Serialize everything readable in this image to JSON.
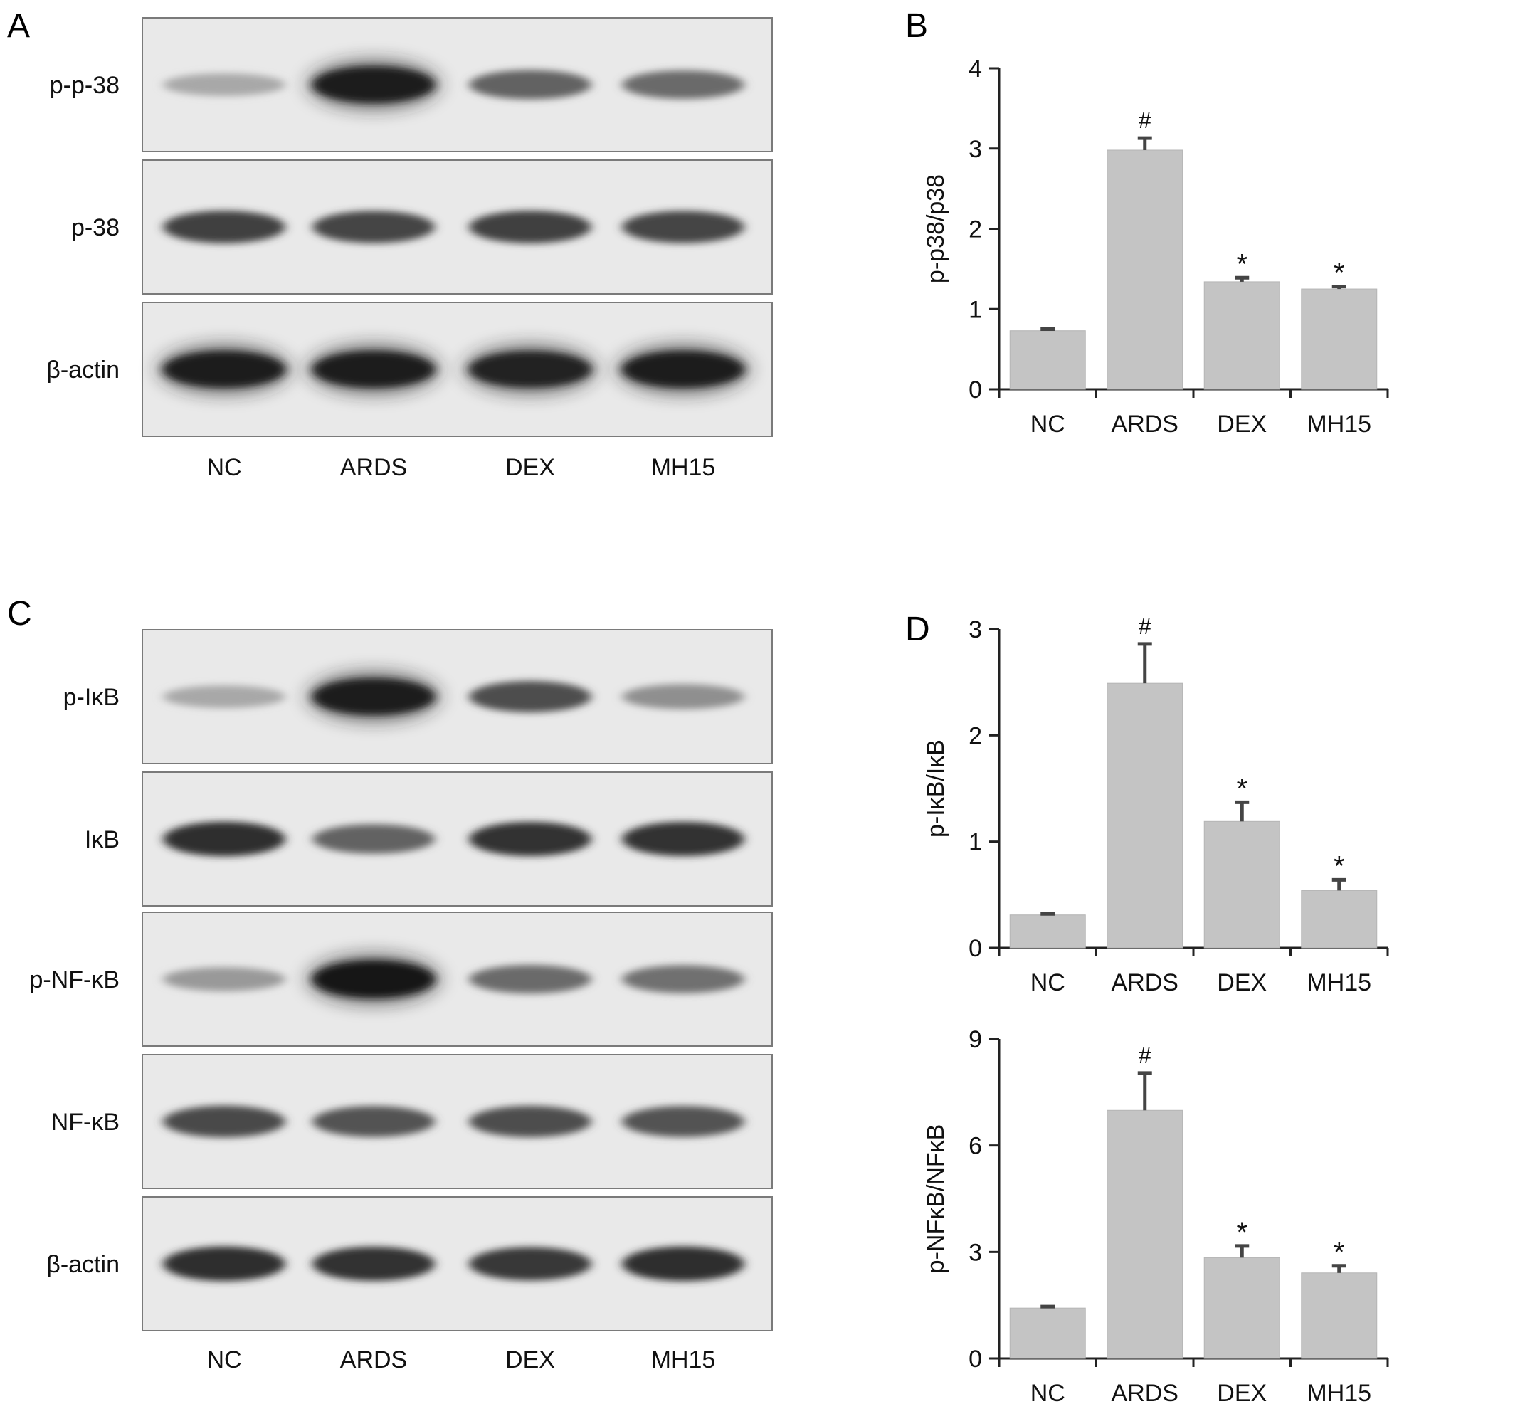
{
  "panel_letters": {
    "a": "A",
    "b": "B",
    "c": "C",
    "d": "D"
  },
  "lanes": [
    "NC",
    "ARDS",
    "DEX",
    "MH15"
  ],
  "blot_a": {
    "rows": [
      {
        "label": "p-p-38",
        "intensities": [
          0.28,
          0.95,
          0.62,
          0.58
        ]
      },
      {
        "label": "p-38",
        "intensities": [
          0.78,
          0.76,
          0.78,
          0.76
        ]
      },
      {
        "label": "β-actin",
        "intensities": [
          0.95,
          0.95,
          0.93,
          0.95
        ]
      }
    ]
  },
  "blot_c": {
    "rows": [
      {
        "label": "p-IκB",
        "intensities": [
          0.28,
          0.95,
          0.72,
          0.4
        ]
      },
      {
        "label": "IκB",
        "intensities": [
          0.88,
          0.62,
          0.86,
          0.86
        ]
      },
      {
        "label": "p-NF-κB",
        "intensities": [
          0.35,
          1.0,
          0.58,
          0.55
        ]
      },
      {
        "label": "NF-κB",
        "intensities": [
          0.74,
          0.7,
          0.72,
          0.7
        ]
      },
      {
        "label": "β-actin",
        "intensities": [
          0.88,
          0.86,
          0.82,
          0.88
        ]
      }
    ]
  },
  "chart_data": [
    {
      "type": "bar",
      "panel": "B",
      "categories": [
        "NC",
        "ARDS",
        "DEX",
        "MH15"
      ],
      "values": [
        0.73,
        2.98,
        1.34,
        1.25
      ],
      "errors": [
        0.02,
        0.15,
        0.05,
        0.03
      ],
      "annotations": [
        "",
        "#",
        "*",
        "*"
      ],
      "ylabel": "p-p38/p38",
      "xlabel": "",
      "ylim": [
        0,
        4
      ],
      "yticks": [
        0,
        1,
        2,
        3,
        4
      ],
      "bar_color": "#c4c4c4",
      "grid": false
    },
    {
      "type": "bar",
      "panel": "D-top",
      "categories": [
        "NC",
        "ARDS",
        "DEX",
        "MH15"
      ],
      "values": [
        0.31,
        2.49,
        1.19,
        0.54
      ],
      "errors": [
        0.01,
        0.37,
        0.18,
        0.1
      ],
      "annotations": [
        "",
        "#",
        "*",
        "*"
      ],
      "ylabel": "p-IκB/IκB",
      "xlabel": "",
      "ylim": [
        0,
        3
      ],
      "yticks": [
        0,
        1,
        2,
        3
      ],
      "bar_color": "#c4c4c4",
      "grid": false
    },
    {
      "type": "bar",
      "panel": "D-bottom",
      "categories": [
        "NC",
        "ARDS",
        "DEX",
        "MH15"
      ],
      "values": [
        1.42,
        6.99,
        2.84,
        2.41
      ],
      "errors": [
        0.04,
        1.05,
        0.33,
        0.2
      ],
      "annotations": [
        "",
        "#",
        "*",
        "*"
      ],
      "ylabel": "p-NFκB/NFκB",
      "xlabel": "",
      "ylim": [
        0,
        9
      ],
      "yticks": [
        0,
        3,
        6,
        9
      ],
      "bar_color": "#c4c4c4",
      "grid": false
    }
  ]
}
